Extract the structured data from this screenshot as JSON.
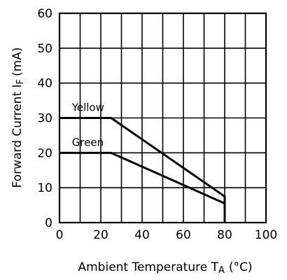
{
  "chart_data": {
    "type": "line",
    "xlabel": "Ambient Temperature T",
    "xlabel_sub": "A",
    "xlabel_unit": "(°C)",
    "ylabel": "Forward Current I",
    "ylabel_sub": "F",
    "ylabel_unit": "(mA)",
    "xlim": [
      0,
      100
    ],
    "ylim": [
      0,
      60
    ],
    "xticks": [
      0,
      20,
      40,
      60,
      80,
      100
    ],
    "yticks": [
      0,
      10,
      20,
      30,
      40,
      50,
      60
    ],
    "x_grid_step": 10,
    "grid": true,
    "series": [
      {
        "name": "Yellow",
        "x": [
          0,
          25,
          80,
          80
        ],
        "y": [
          30,
          30,
          7.5,
          0
        ]
      },
      {
        "name": "Green",
        "x": [
          0,
          25,
          80,
          80
        ],
        "y": [
          20,
          20,
          5.5,
          0
        ]
      }
    ]
  }
}
